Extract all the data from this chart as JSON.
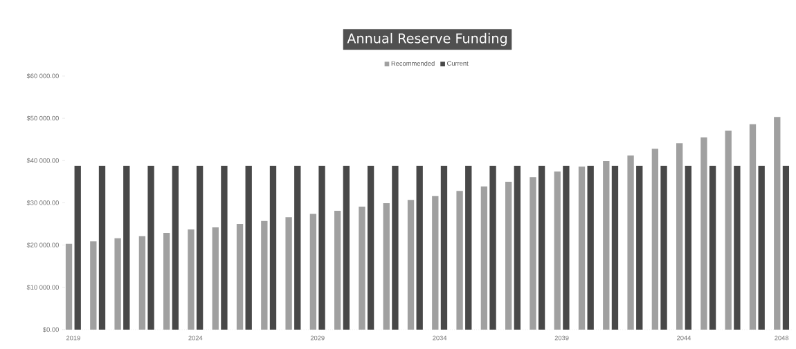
{
  "chart_data": {
    "type": "bar",
    "title": "Annual Reserve Funding",
    "legend": "top",
    "categories": [
      "2019",
      null,
      null,
      null,
      null,
      "2024",
      null,
      null,
      null,
      null,
      "2029",
      null,
      null,
      null,
      null,
      "2034",
      null,
      null,
      null,
      null,
      "2039",
      null,
      null,
      null,
      null,
      "2044",
      null,
      null,
      null,
      "2048"
    ],
    "series": [
      {
        "name": "Recommended",
        "color": "#a0a0a0",
        "values": [
          20300,
          20900,
          21600,
          22100,
          22900,
          23700,
          24200,
          25000,
          25700,
          26600,
          27400,
          28100,
          29100,
          29900,
          30700,
          31600,
          32800,
          33900,
          35000,
          36100,
          37400,
          38600,
          39900,
          41200,
          42800,
          44100,
          45500,
          47100,
          48600,
          50300
        ]
      },
      {
        "name": "Current",
        "color": "#484848",
        "values": [
          38800,
          38800,
          38800,
          38800,
          38800,
          38800,
          38800,
          38800,
          38800,
          38800,
          38800,
          38800,
          38800,
          38800,
          38800,
          38800,
          38800,
          38800,
          38800,
          38800,
          38800,
          38800,
          38800,
          38800,
          38800,
          38800,
          38800,
          38800,
          38800,
          38800
        ]
      }
    ],
    "ylim": [
      0,
      60000
    ],
    "yticks": [
      {
        "value": 0,
        "label": "$0.00"
      },
      {
        "value": 10000,
        "label": "$10 000.00"
      },
      {
        "value": 20000,
        "label": "$20 000.00"
      },
      {
        "value": 30000,
        "label": "$30 000.00"
      },
      {
        "value": 40000,
        "label": "$40 000.00"
      },
      {
        "value": 50000,
        "label": "$50 000.00"
      },
      {
        "value": 60000,
        "label": "$60 000.00"
      }
    ]
  }
}
